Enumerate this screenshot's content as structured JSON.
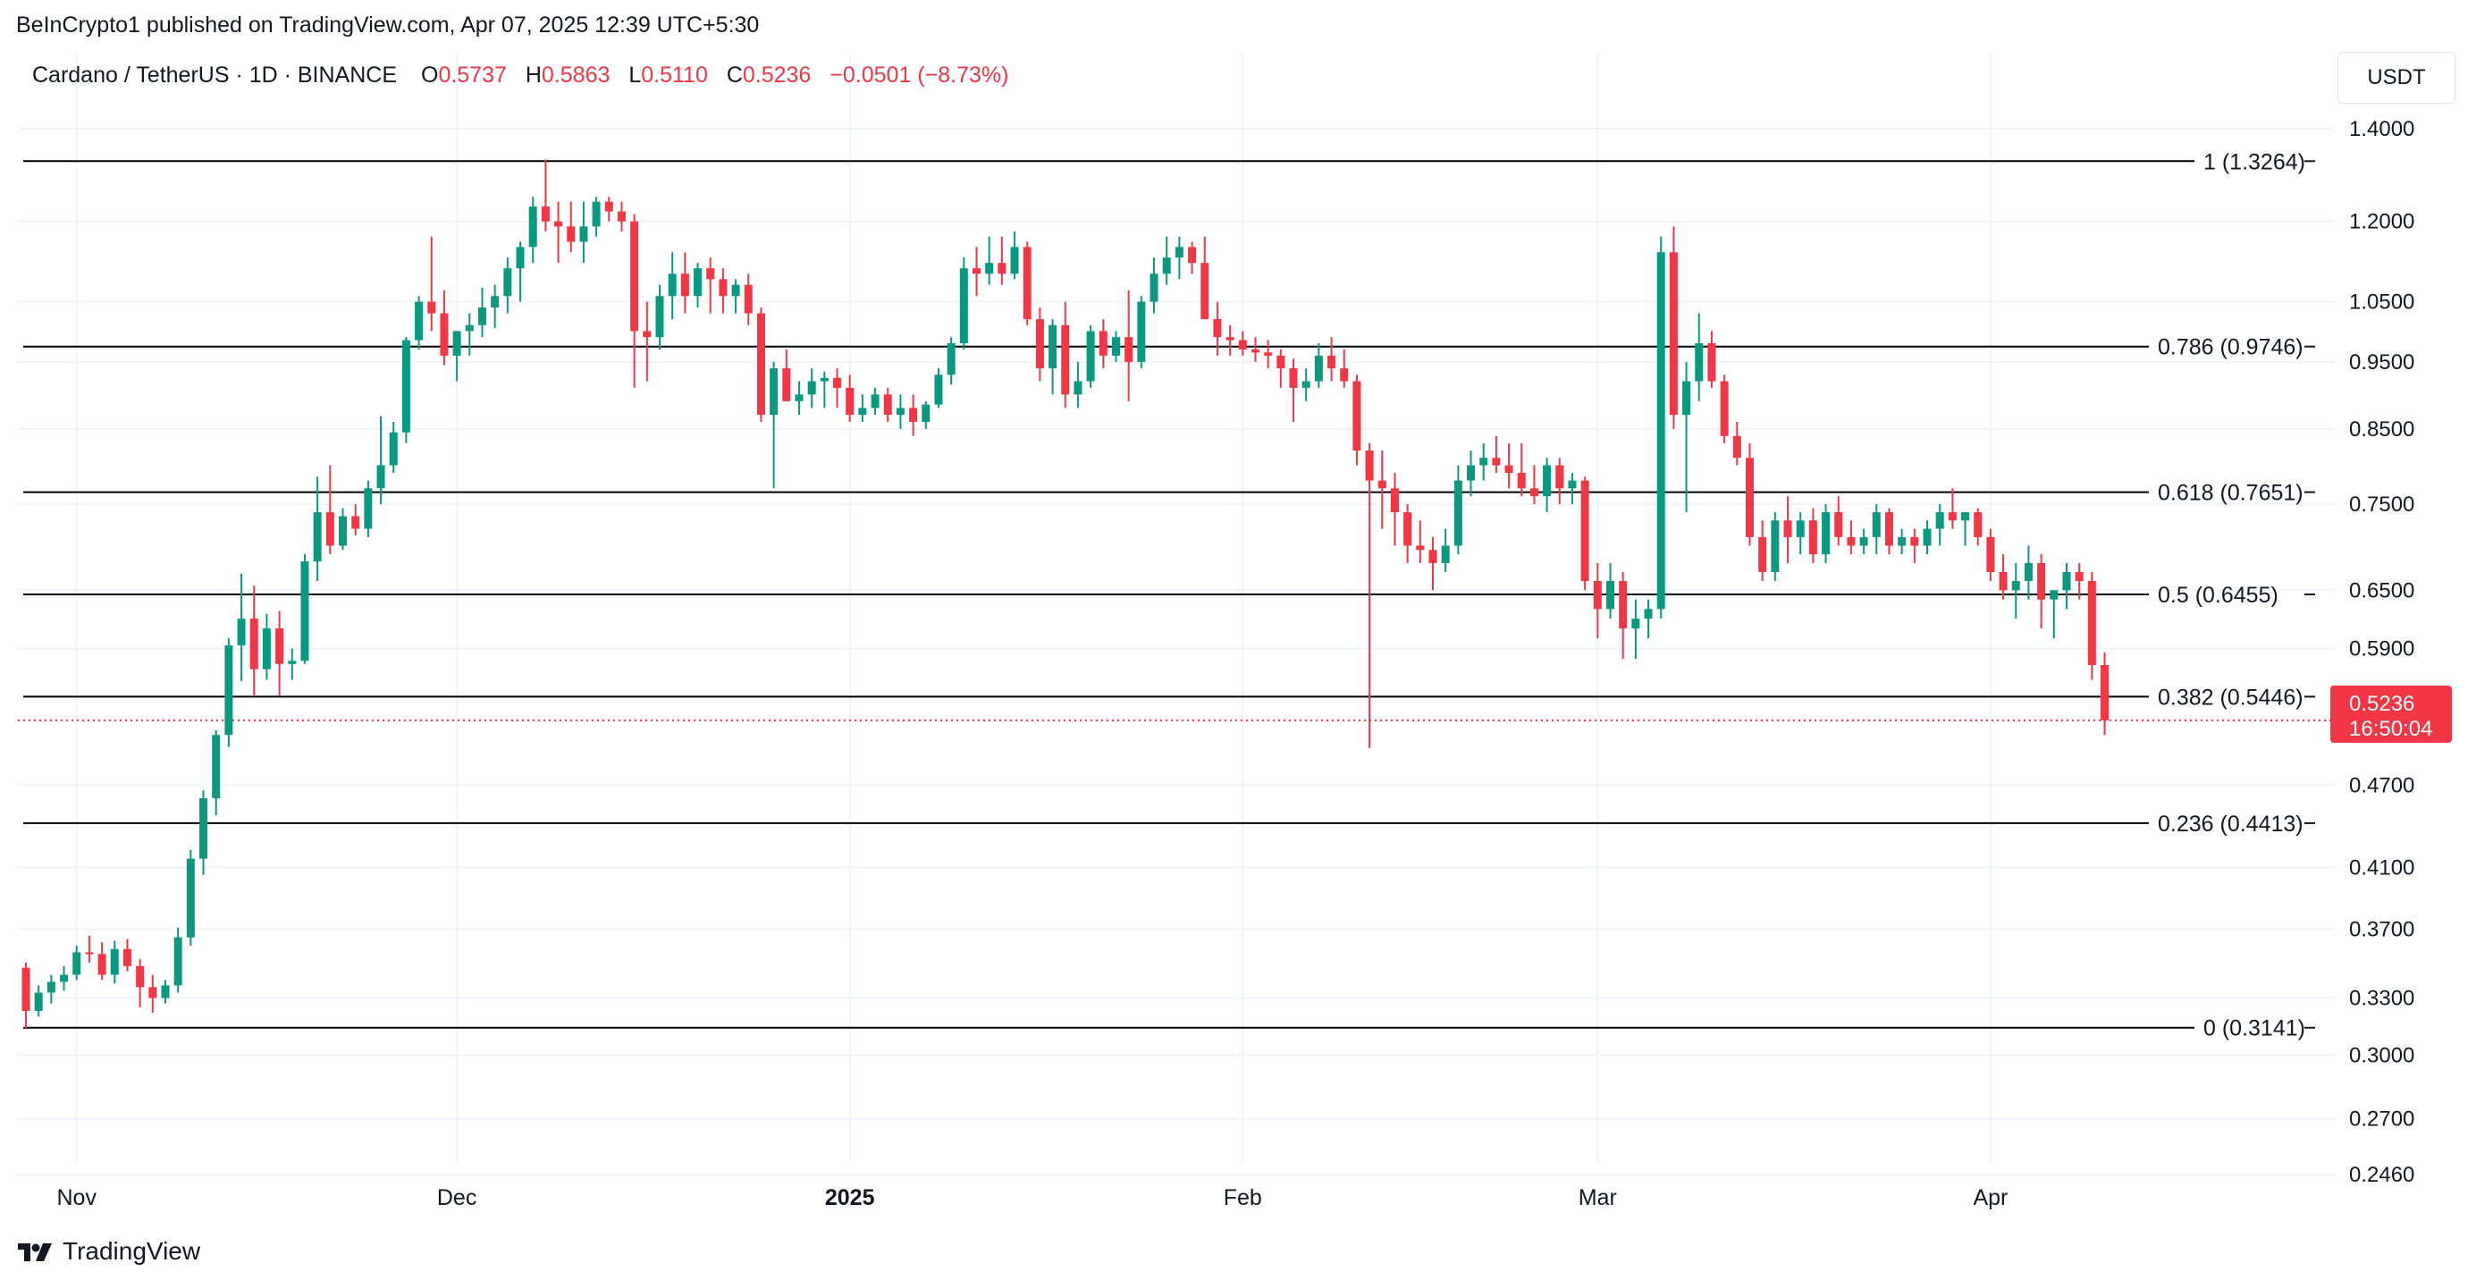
{
  "header": {
    "published": "BeInCrypto1 published on TradingView.com, Apr 07, 2025 12:39 UTC+5:30",
    "symbol": "Cardano / TetherUS · 1D · BINANCE",
    "open_label": "O",
    "open": "0.5737",
    "high_label": "H",
    "high": "0.5863",
    "low_label": "L",
    "low": "0.5110",
    "close_label": "C",
    "close": "0.5236",
    "change": "−0.0501 (−8.73%)"
  },
  "unit": "USDT",
  "brand": "TradingView",
  "colors": {
    "up": "#089981",
    "down": "#f23645",
    "grid": "#f0f3fa",
    "axis_text": "#131722"
  },
  "current_price": {
    "value": "0.5236",
    "countdown": "16:50:04"
  },
  "chart_data": {
    "type": "candlestick",
    "scale": "log",
    "ylim": [
      0.235,
      1.44
    ],
    "y_ticks": [
      "1.4000",
      "1.2000",
      "1.0500",
      "0.9500",
      "0.8500",
      "0.7500",
      "0.6500",
      "0.5900",
      "0.4700",
      "0.4100",
      "0.3700",
      "0.3300",
      "0.3000",
      "0.2700",
      "0.2460"
    ],
    "x_ticks": [
      {
        "label": "Nov",
        "day": 4,
        "bold": false
      },
      {
        "label": "Dec",
        "day": 34,
        "bold": false
      },
      {
        "label": "2025",
        "day": 65,
        "bold": true
      },
      {
        "label": "Feb",
        "day": 96,
        "bold": false
      },
      {
        "label": "Mar",
        "day": 124,
        "bold": false
      },
      {
        "label": "Apr",
        "day": 155,
        "bold": false
      }
    ],
    "fib_levels": [
      {
        "label": "1 (1.3264)",
        "value": 1.3264
      },
      {
        "label": "0.786 (0.9746)",
        "value": 0.9746
      },
      {
        "label": "0.618 (0.7651)",
        "value": 0.7651
      },
      {
        "label": "0.5 (0.6455)",
        "value": 0.6455
      },
      {
        "label": "0.382 (0.5446)",
        "value": 0.5446
      },
      {
        "label": "0.236 (0.4413)",
        "value": 0.4413
      },
      {
        "label": "0 (0.3141)",
        "value": 0.3141
      }
    ],
    "candles": [
      [
        0.347,
        0.35,
        0.314,
        0.323
      ],
      [
        0.323,
        0.337,
        0.32,
        0.333
      ],
      [
        0.333,
        0.343,
        0.327,
        0.339
      ],
      [
        0.339,
        0.348,
        0.334,
        0.343
      ],
      [
        0.343,
        0.36,
        0.34,
        0.356
      ],
      [
        0.356,
        0.366,
        0.35,
        0.355
      ],
      [
        0.355,
        0.362,
        0.34,
        0.343
      ],
      [
        0.343,
        0.363,
        0.338,
        0.358
      ],
      [
        0.358,
        0.364,
        0.345,
        0.348
      ],
      [
        0.348,
        0.352,
        0.325,
        0.336
      ],
      [
        0.336,
        0.343,
        0.322,
        0.33
      ],
      [
        0.33,
        0.34,
        0.327,
        0.337
      ],
      [
        0.337,
        0.371,
        0.333,
        0.365
      ],
      [
        0.365,
        0.422,
        0.36,
        0.416
      ],
      [
        0.416,
        0.466,
        0.405,
        0.46
      ],
      [
        0.46,
        0.515,
        0.447,
        0.511
      ],
      [
        0.511,
        0.6,
        0.501,
        0.593
      ],
      [
        0.593,
        0.668,
        0.559,
        0.62
      ],
      [
        0.62,
        0.655,
        0.545,
        0.57
      ],
      [
        0.57,
        0.625,
        0.56,
        0.61
      ],
      [
        0.61,
        0.628,
        0.545,
        0.575
      ],
      [
        0.575,
        0.59,
        0.56,
        0.578
      ],
      [
        0.578,
        0.69,
        0.575,
        0.682
      ],
      [
        0.682,
        0.785,
        0.66,
        0.74
      ],
      [
        0.74,
        0.8,
        0.69,
        0.7
      ],
      [
        0.7,
        0.745,
        0.695,
        0.735
      ],
      [
        0.735,
        0.75,
        0.712,
        0.72
      ],
      [
        0.72,
        0.78,
        0.71,
        0.77
      ],
      [
        0.77,
        0.868,
        0.75,
        0.8
      ],
      [
        0.8,
        0.86,
        0.79,
        0.845
      ],
      [
        0.845,
        0.99,
        0.83,
        0.985
      ],
      [
        0.985,
        1.06,
        0.97,
        1.05
      ],
      [
        1.05,
        1.17,
        1.0,
        1.03
      ],
      [
        1.03,
        1.07,
        0.945,
        0.96
      ],
      [
        0.96,
        1.0,
        0.92,
        1.0
      ],
      [
        1.0,
        1.03,
        0.96,
        1.01
      ],
      [
        1.01,
        1.075,
        0.99,
        1.04
      ],
      [
        1.04,
        1.08,
        1.005,
        1.06
      ],
      [
        1.06,
        1.13,
        1.03,
        1.11
      ],
      [
        1.11,
        1.16,
        1.05,
        1.15
      ],
      [
        1.15,
        1.25,
        1.12,
        1.23
      ],
      [
        1.23,
        1.33,
        1.18,
        1.2
      ],
      [
        1.2,
        1.24,
        1.12,
        1.19
      ],
      [
        1.19,
        1.24,
        1.14,
        1.16
      ],
      [
        1.16,
        1.24,
        1.12,
        1.19
      ],
      [
        1.19,
        1.25,
        1.17,
        1.24
      ],
      [
        1.24,
        1.25,
        1.2,
        1.22
      ],
      [
        1.22,
        1.24,
        1.18,
        1.2
      ],
      [
        1.2,
        1.215,
        0.91,
        1.0
      ],
      [
        1.0,
        1.05,
        0.92,
        0.99
      ],
      [
        0.99,
        1.08,
        0.97,
        1.06
      ],
      [
        1.06,
        1.14,
        1.02,
        1.1
      ],
      [
        1.1,
        1.14,
        1.03,
        1.06
      ],
      [
        1.06,
        1.12,
        1.04,
        1.11
      ],
      [
        1.11,
        1.13,
        1.03,
        1.09
      ],
      [
        1.09,
        1.11,
        1.03,
        1.06
      ],
      [
        1.06,
        1.09,
        1.03,
        1.08
      ],
      [
        1.08,
        1.1,
        1.01,
        1.03
      ],
      [
        1.03,
        1.04,
        0.86,
        0.87
      ],
      [
        0.87,
        0.95,
        0.77,
        0.94
      ],
      [
        0.94,
        0.97,
        0.89,
        0.89
      ],
      [
        0.89,
        0.92,
        0.87,
        0.9
      ],
      [
        0.9,
        0.94,
        0.88,
        0.92
      ],
      [
        0.92,
        0.935,
        0.88,
        0.925
      ],
      [
        0.925,
        0.94,
        0.88,
        0.91
      ],
      [
        0.91,
        0.93,
        0.86,
        0.87
      ],
      [
        0.87,
        0.9,
        0.86,
        0.88
      ],
      [
        0.88,
        0.91,
        0.87,
        0.9
      ],
      [
        0.9,
        0.91,
        0.86,
        0.87
      ],
      [
        0.87,
        0.9,
        0.85,
        0.88
      ],
      [
        0.88,
        0.9,
        0.84,
        0.86
      ],
      [
        0.86,
        0.89,
        0.85,
        0.885
      ],
      [
        0.885,
        0.94,
        0.88,
        0.93
      ],
      [
        0.93,
        0.99,
        0.915,
        0.98
      ],
      [
        0.98,
        1.13,
        0.97,
        1.11
      ],
      [
        1.11,
        1.15,
        1.06,
        1.1
      ],
      [
        1.1,
        1.17,
        1.08,
        1.12
      ],
      [
        1.12,
        1.17,
        1.08,
        1.1
      ],
      [
        1.1,
        1.18,
        1.09,
        1.15
      ],
      [
        1.15,
        1.16,
        1.01,
        1.02
      ],
      [
        1.02,
        1.04,
        0.92,
        0.94
      ],
      [
        0.94,
        1.02,
        0.9,
        1.01
      ],
      [
        1.01,
        1.05,
        0.88,
        0.9
      ],
      [
        0.9,
        0.95,
        0.88,
        0.92
      ],
      [
        0.92,
        1.01,
        0.91,
        1.0
      ],
      [
        1.0,
        1.02,
        0.94,
        0.96
      ],
      [
        0.96,
        1.0,
        0.95,
        0.99
      ],
      [
        0.99,
        1.07,
        0.89,
        0.95
      ],
      [
        0.95,
        1.06,
        0.94,
        1.05
      ],
      [
        1.05,
        1.13,
        1.03,
        1.1
      ],
      [
        1.1,
        1.17,
        1.08,
        1.13
      ],
      [
        1.13,
        1.17,
        1.09,
        1.15
      ],
      [
        1.15,
        1.16,
        1.1,
        1.12
      ],
      [
        1.12,
        1.17,
        1.02,
        1.02
      ],
      [
        1.02,
        1.05,
        0.96,
        0.99
      ],
      [
        0.99,
        1.01,
        0.96,
        0.985
      ],
      [
        0.985,
        1.0,
        0.96,
        0.97
      ],
      [
        0.97,
        0.99,
        0.95,
        0.965
      ],
      [
        0.965,
        0.985,
        0.94,
        0.96
      ],
      [
        0.96,
        0.97,
        0.91,
        0.94
      ],
      [
        0.94,
        0.955,
        0.86,
        0.91
      ],
      [
        0.91,
        0.94,
        0.89,
        0.92
      ],
      [
        0.92,
        0.98,
        0.91,
        0.96
      ],
      [
        0.96,
        0.99,
        0.92,
        0.94
      ],
      [
        0.94,
        0.97,
        0.91,
        0.92
      ],
      [
        0.92,
        0.93,
        0.8,
        0.82
      ],
      [
        0.82,
        0.83,
        0.5,
        0.78
      ],
      [
        0.78,
        0.82,
        0.72,
        0.77
      ],
      [
        0.77,
        0.79,
        0.7,
        0.74
      ],
      [
        0.74,
        0.75,
        0.68,
        0.7
      ],
      [
        0.7,
        0.73,
        0.68,
        0.695
      ],
      [
        0.695,
        0.71,
        0.65,
        0.68
      ],
      [
        0.68,
        0.72,
        0.67,
        0.7
      ],
      [
        0.7,
        0.8,
        0.69,
        0.78
      ],
      [
        0.78,
        0.82,
        0.76,
        0.8
      ],
      [
        0.8,
        0.83,
        0.78,
        0.81
      ],
      [
        0.81,
        0.84,
        0.79,
        0.8
      ],
      [
        0.8,
        0.83,
        0.77,
        0.79
      ],
      [
        0.79,
        0.83,
        0.76,
        0.77
      ],
      [
        0.77,
        0.8,
        0.75,
        0.76
      ],
      [
        0.76,
        0.81,
        0.74,
        0.8
      ],
      [
        0.8,
        0.81,
        0.75,
        0.77
      ],
      [
        0.77,
        0.79,
        0.75,
        0.78
      ],
      [
        0.78,
        0.785,
        0.65,
        0.66
      ],
      [
        0.66,
        0.68,
        0.6,
        0.63
      ],
      [
        0.63,
        0.68,
        0.62,
        0.66
      ],
      [
        0.66,
        0.67,
        0.58,
        0.61
      ],
      [
        0.61,
        0.64,
        0.58,
        0.62
      ],
      [
        0.62,
        0.64,
        0.6,
        0.63
      ],
      [
        0.63,
        1.17,
        0.62,
        1.14
      ],
      [
        1.14,
        1.19,
        0.85,
        0.87
      ],
      [
        0.87,
        0.95,
        0.74,
        0.92
      ],
      [
        0.92,
        1.03,
        0.89,
        0.98
      ],
      [
        0.98,
        1.0,
        0.91,
        0.92
      ],
      [
        0.92,
        0.93,
        0.83,
        0.84
      ],
      [
        0.84,
        0.86,
        0.8,
        0.81
      ],
      [
        0.81,
        0.83,
        0.7,
        0.71
      ],
      [
        0.71,
        0.73,
        0.66,
        0.67
      ],
      [
        0.67,
        0.74,
        0.66,
        0.73
      ],
      [
        0.73,
        0.76,
        0.68,
        0.71
      ],
      [
        0.71,
        0.74,
        0.69,
        0.73
      ],
      [
        0.73,
        0.745,
        0.68,
        0.69
      ],
      [
        0.69,
        0.75,
        0.68,
        0.74
      ],
      [
        0.74,
        0.76,
        0.7,
        0.71
      ],
      [
        0.71,
        0.73,
        0.69,
        0.7
      ],
      [
        0.7,
        0.72,
        0.69,
        0.71
      ],
      [
        0.71,
        0.75,
        0.69,
        0.74
      ],
      [
        0.74,
        0.745,
        0.69,
        0.7
      ],
      [
        0.7,
        0.72,
        0.69,
        0.71
      ],
      [
        0.71,
        0.72,
        0.68,
        0.7
      ],
      [
        0.7,
        0.73,
        0.69,
        0.72
      ],
      [
        0.72,
        0.75,
        0.7,
        0.74
      ],
      [
        0.74,
        0.77,
        0.72,
        0.73
      ],
      [
        0.73,
        0.74,
        0.7,
        0.74
      ],
      [
        0.74,
        0.745,
        0.7,
        0.71
      ],
      [
        0.71,
        0.72,
        0.66,
        0.67
      ],
      [
        0.67,
        0.69,
        0.64,
        0.65
      ],
      [
        0.65,
        0.68,
        0.62,
        0.66
      ],
      [
        0.66,
        0.7,
        0.64,
        0.68
      ],
      [
        0.68,
        0.69,
        0.61,
        0.64
      ],
      [
        0.64,
        0.65,
        0.6,
        0.65
      ],
      [
        0.65,
        0.68,
        0.63,
        0.67
      ],
      [
        0.67,
        0.68,
        0.64,
        0.66
      ],
      [
        0.66,
        0.67,
        0.56,
        0.574
      ],
      [
        0.574,
        0.586,
        0.511,
        0.5236
      ]
    ]
  }
}
